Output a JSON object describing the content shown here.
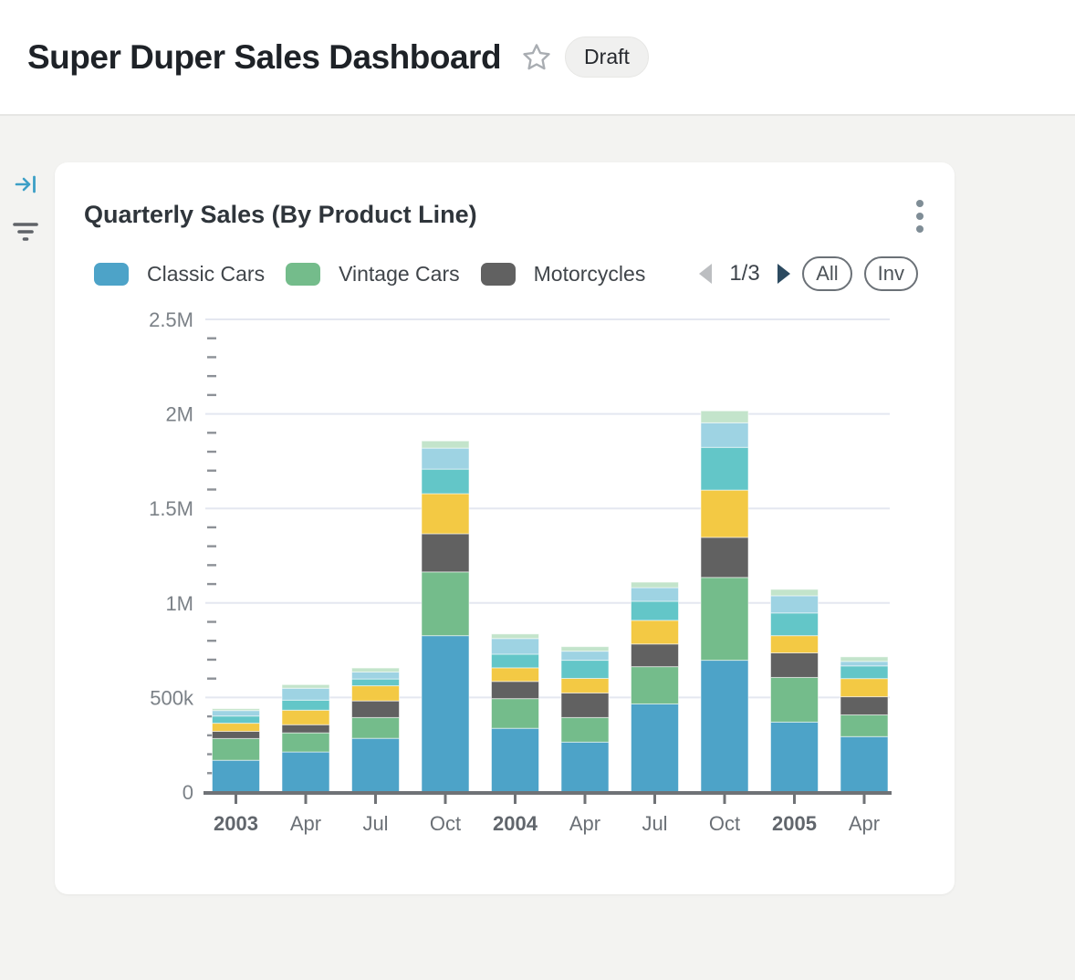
{
  "header": {
    "title": "Super Duper Sales Dashboard",
    "status_badge": "Draft"
  },
  "icons": {
    "rail_top": "arrow-to-bar",
    "rail_bottom": "filter-lines",
    "title_action": "star-outline",
    "card_menu": "kebab-vertical",
    "legend_prev": "triangle-left",
    "legend_next": "triangle-right"
  },
  "card": {
    "title": "Quarterly Sales (By Product Line)",
    "legend": {
      "pagination": "1/3",
      "buttons": [
        {
          "label": "All"
        },
        {
          "label": "Inv"
        }
      ]
    }
  },
  "chart_data": {
    "type": "bar",
    "stacked": true,
    "title": "Quarterly Sales (By Product Line)",
    "categories": [
      "2003",
      "Apr",
      "Jul",
      "Oct",
      "2004",
      "Apr",
      "Jul",
      "Oct",
      "2005",
      "Apr"
    ],
    "bold_categories": [
      "2003",
      "2004",
      "2005"
    ],
    "series": [
      {
        "name": "Classic Cars",
        "color": "#4DA3C8",
        "in_legend": true,
        "values": [
          168000,
          212000,
          284000,
          827000,
          337000,
          264000,
          466000,
          697000,
          370000,
          293000
        ]
      },
      {
        "name": "Vintage Cars",
        "color": "#74BC8B",
        "in_legend": true,
        "values": [
          115000,
          101000,
          110000,
          337000,
          157000,
          130000,
          197000,
          438000,
          236000,
          115000
        ]
      },
      {
        "name": "Motorcycles",
        "color": "#616161",
        "in_legend": true,
        "values": [
          38000,
          43000,
          88000,
          202000,
          91000,
          130000,
          120000,
          212000,
          130000,
          96000
        ]
      },
      {
        "name": "",
        "color": "#F3C944",
        "in_legend": false,
        "values": [
          43000,
          77000,
          80000,
          212000,
          72000,
          77000,
          125000,
          250000,
          91000,
          96000
        ]
      },
      {
        "name": "",
        "color": "#63C6C8",
        "in_legend": false,
        "values": [
          38000,
          53000,
          36000,
          130000,
          72000,
          96000,
          101000,
          226000,
          120000,
          67000
        ]
      },
      {
        "name": "",
        "color": "#9ED3E3",
        "in_legend": false,
        "values": [
          29000,
          63000,
          37000,
          111000,
          83000,
          48000,
          72000,
          130000,
          91000,
          24000
        ]
      },
      {
        "name": "",
        "color": "#C3E4CB",
        "in_legend": false,
        "values": [
          10000,
          19000,
          21000,
          38000,
          24000,
          24000,
          29000,
          63000,
          34000,
          24000
        ]
      }
    ],
    "ylim": [
      0,
      2500000
    ],
    "ytick_values": [
      0,
      500000,
      1000000,
      1500000,
      2000000,
      2500000
    ],
    "ytick_labels": [
      "0",
      "500k",
      "1M",
      "1.5M",
      "2M",
      "2.5M"
    ],
    "minor_tick_step": 100000,
    "grid": true,
    "legend_position": "top"
  }
}
